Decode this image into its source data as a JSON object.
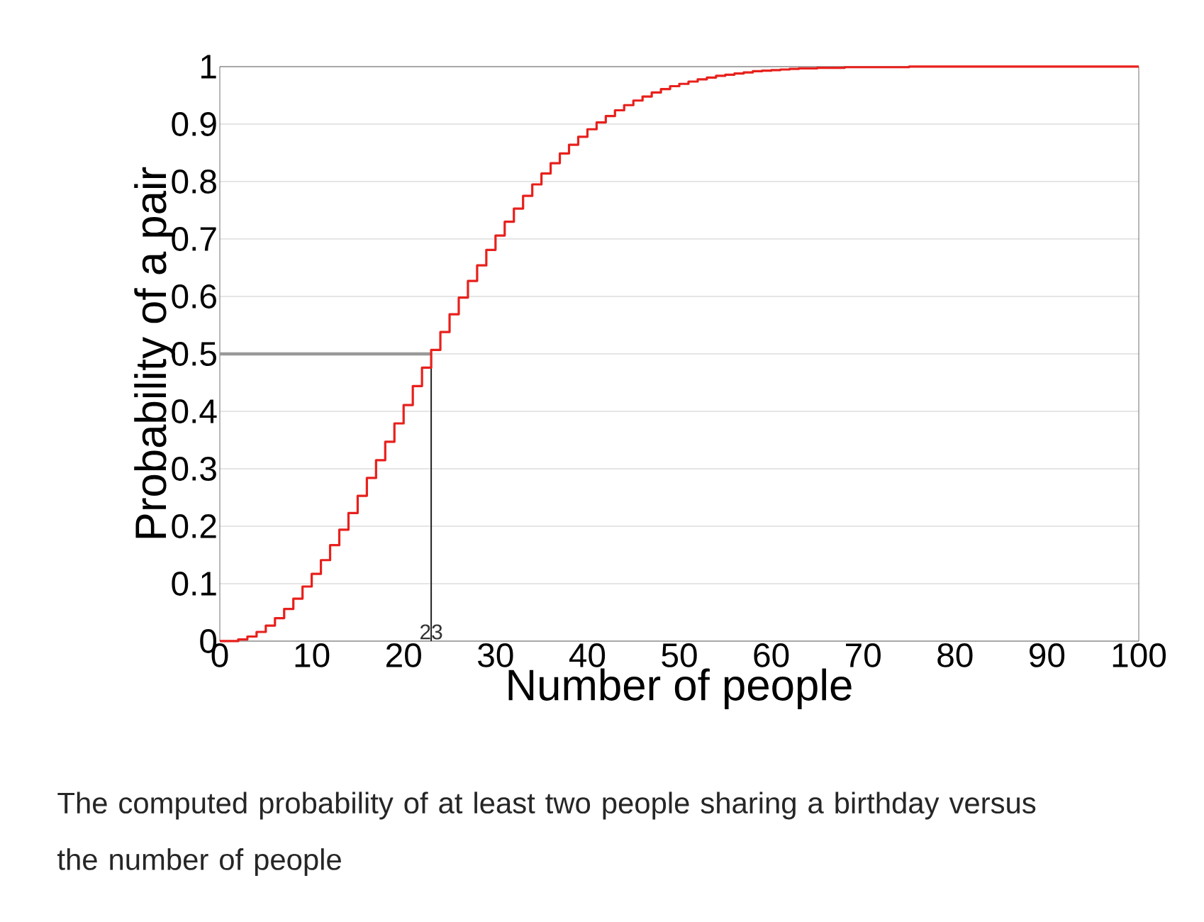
{
  "chart_data": {
    "type": "step",
    "xlabel": "Number of people",
    "ylabel": "Probability of a pair",
    "x": [
      0,
      1,
      2,
      3,
      4,
      5,
      6,
      7,
      8,
      9,
      10,
      11,
      12,
      13,
      14,
      15,
      16,
      17,
      18,
      19,
      20,
      21,
      22,
      23,
      24,
      25,
      26,
      27,
      28,
      29,
      30,
      31,
      32,
      33,
      34,
      35,
      36,
      37,
      38,
      39,
      40,
      41,
      42,
      43,
      44,
      45,
      46,
      47,
      48,
      49,
      50,
      51,
      52,
      53,
      54,
      55,
      56,
      57,
      58,
      59,
      60,
      61,
      62,
      63,
      64,
      65,
      66,
      67,
      68,
      69,
      70,
      75,
      80,
      85,
      90,
      95,
      100
    ],
    "series": [
      {
        "color": "#e8201c",
        "values": [
          0,
          0,
          0.003,
          0.008,
          0.016,
          0.027,
          0.04,
          0.056,
          0.074,
          0.095,
          0.117,
          0.141,
          0.167,
          0.194,
          0.223,
          0.253,
          0.284,
          0.315,
          0.347,
          0.379,
          0.411,
          0.444,
          0.476,
          0.507,
          0.538,
          0.569,
          0.598,
          0.627,
          0.654,
          0.681,
          0.706,
          0.73,
          0.753,
          0.775,
          0.795,
          0.814,
          0.832,
          0.849,
          0.864,
          0.878,
          0.891,
          0.903,
          0.914,
          0.924,
          0.933,
          0.941,
          0.948,
          0.955,
          0.961,
          0.966,
          0.97,
          0.974,
          0.978,
          0.981,
          0.984,
          0.986,
          0.988,
          0.99,
          0.992,
          0.993,
          0.994,
          0.995,
          0.996,
          0.997,
          0.997,
          0.998,
          0.998,
          0.998,
          0.999,
          0.999,
          0.999,
          1,
          1,
          1,
          1,
          1,
          1
        ]
      }
    ],
    "xlim": [
      0,
      100
    ],
    "xticks": [
      0,
      10,
      20,
      30,
      40,
      50,
      60,
      70,
      80,
      90,
      100
    ],
    "ylim": [
      0,
      1
    ],
    "yticks": [
      0,
      0.1,
      0.2,
      0.3,
      0.4,
      0.5,
      0.6,
      0.7,
      0.8,
      0.9,
      1
    ],
    "grid": "y",
    "ref_lines": [
      {
        "axis": "y",
        "value": 0.5,
        "color": "#999999"
      },
      {
        "axis": "x",
        "value": 23,
        "label": "23",
        "color": "#222222"
      }
    ],
    "annotations": [
      "The computed probability of at least two people sharing a birthday versus the number of people"
    ]
  }
}
